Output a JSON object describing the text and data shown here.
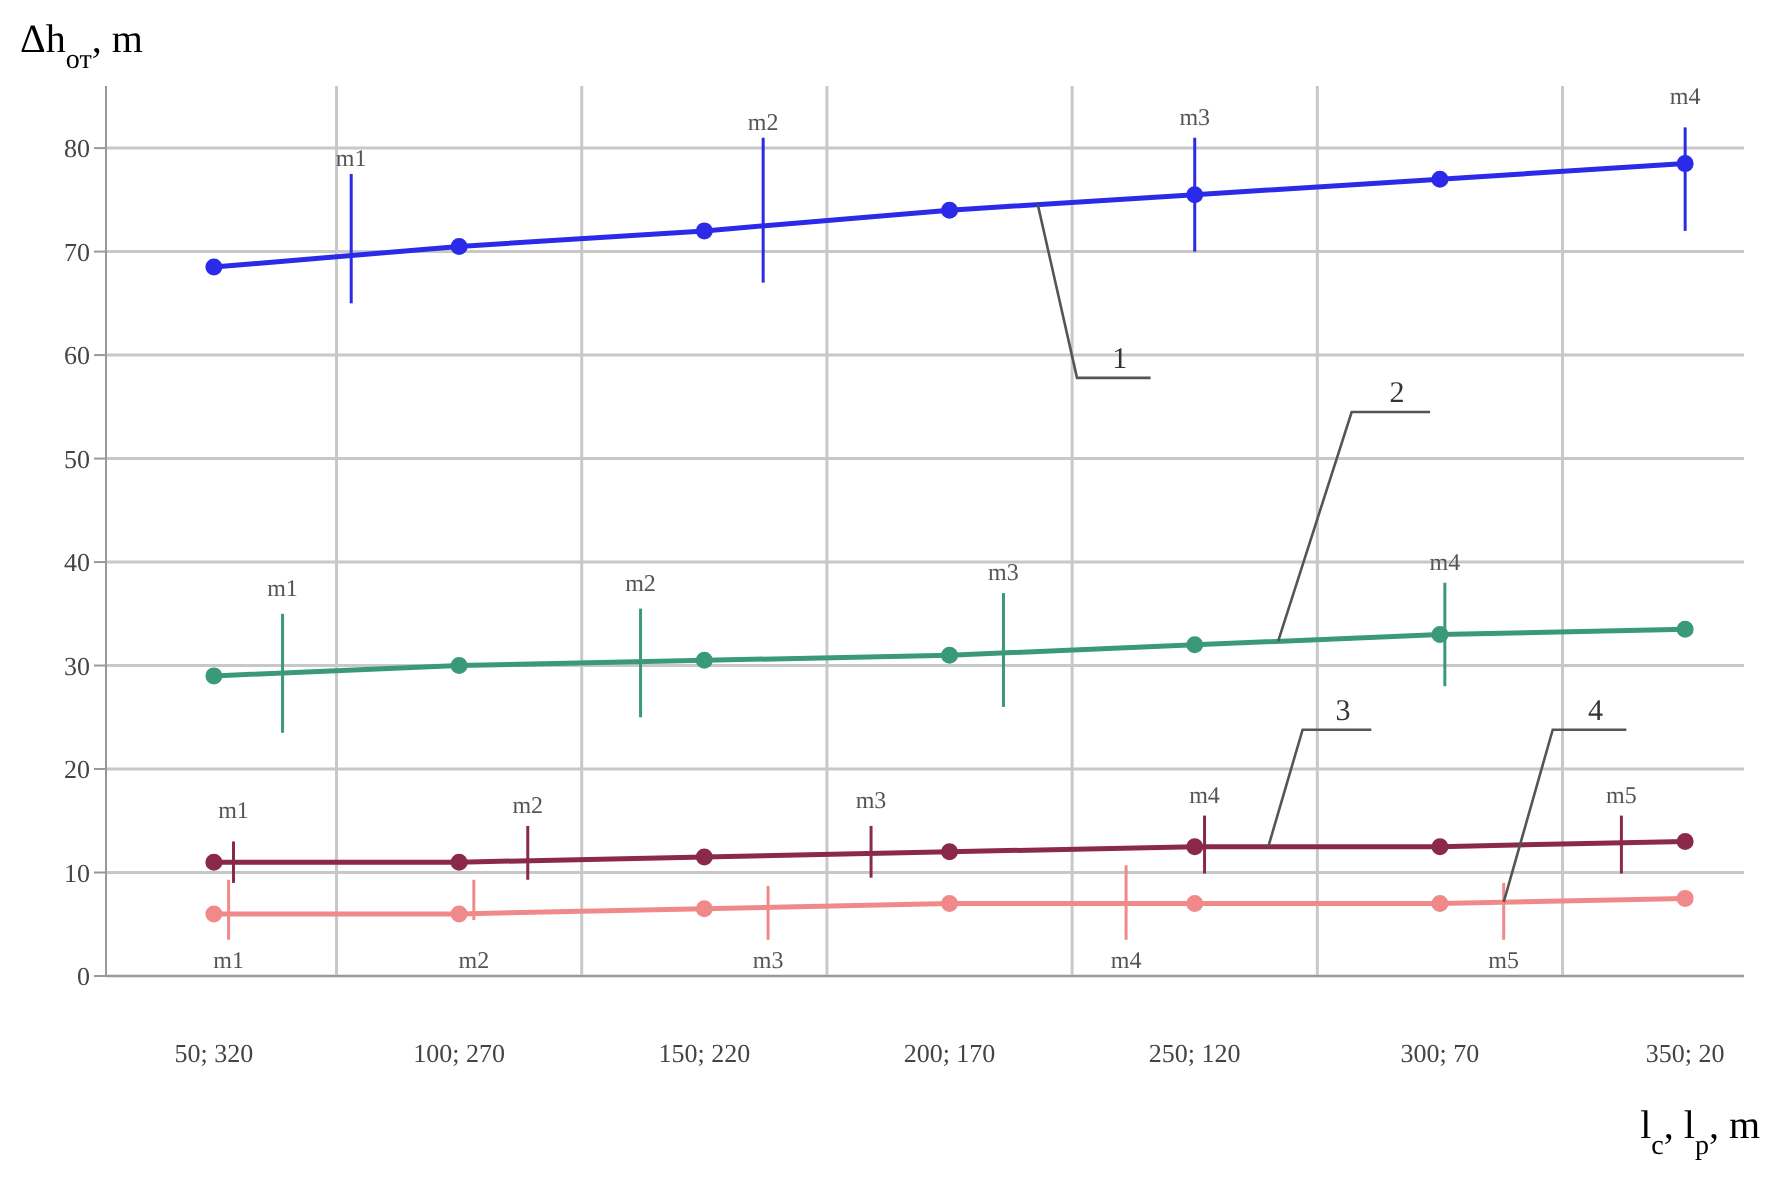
{
  "chart_data": {
    "type": "line",
    "ylabel": "Δh$_{от}$, m",
    "xlabel": "l$_{с}$, l$_{р}$, m",
    "categories": [
      "50; 320",
      "100; 270",
      "150; 220",
      "200; 170",
      "250; 120",
      "300; 70",
      "350; 20"
    ],
    "ylim": [
      0,
      86
    ],
    "yticks": [
      0,
      10,
      20,
      30,
      40,
      50,
      60,
      70,
      80
    ],
    "grid": true,
    "marker": "circle",
    "line_style": "solid",
    "series": [
      {
        "name": "1",
        "color": "#2a2ae8",
        "values": [
          68.5,
          70.5,
          72,
          74,
          75.5,
          77,
          78.5
        ]
      },
      {
        "name": "2",
        "color": "#3a9a78",
        "values": [
          29,
          30,
          30.5,
          31,
          32,
          33,
          33.5
        ]
      },
      {
        "name": "3",
        "color": "#8a2a48",
        "values": [
          11,
          11,
          11.5,
          12,
          12.5,
          12.5,
          13
        ]
      },
      {
        "name": "4",
        "color": "#f08a8a",
        "values": [
          6,
          6,
          6.5,
          7,
          7,
          7,
          7.5
        ]
      }
    ],
    "annotations": [
      "m1",
      "m2",
      "m3",
      "m4",
      "m1",
      "m2",
      "m3",
      "m4",
      "m1",
      "m2",
      "m3",
      "m4",
      "m5",
      "m1",
      "m2",
      "m3",
      "m4",
      "m5"
    ]
  }
}
